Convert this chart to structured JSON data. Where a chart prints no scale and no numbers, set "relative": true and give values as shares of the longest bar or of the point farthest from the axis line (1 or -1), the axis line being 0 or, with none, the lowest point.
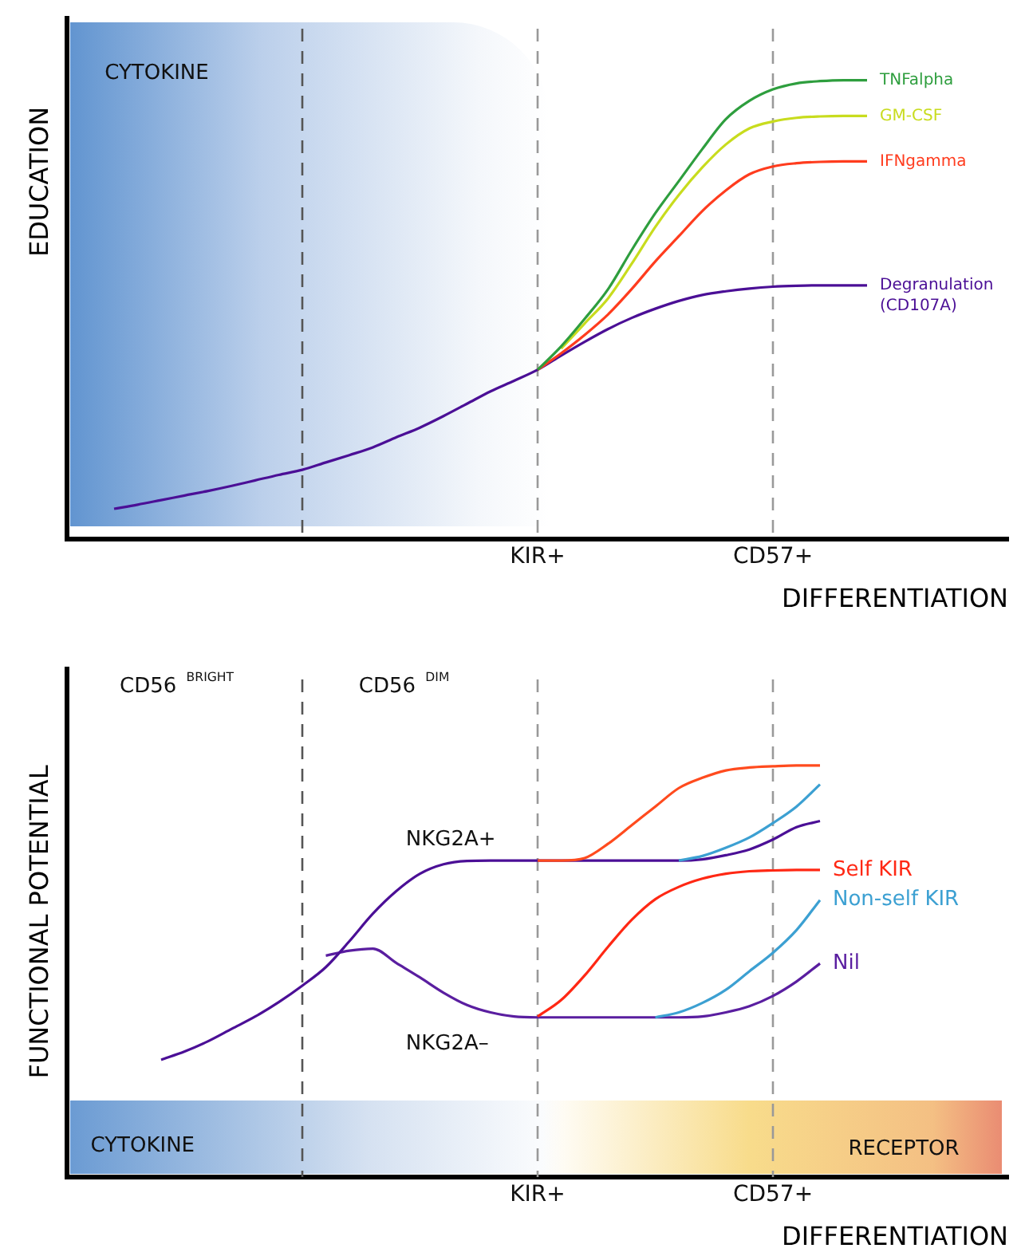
{
  "chart_data": [
    {
      "type": "line",
      "relative": true,
      "ylabel": "EDUCATION",
      "xlabel": "DIFFERENTIATION",
      "categories": [
        null,
        null,
        null,
        null,
        null,
        null,
        null,
        null,
        null,
        null,
        null,
        null,
        null,
        null,
        null,
        null,
        null,
        null,
        null,
        null,
        "KIR+",
        null,
        null,
        null,
        null,
        null,
        null,
        null,
        null,
        null,
        "CD57+",
        null,
        null,
        null,
        null,
        null,
        null,
        null,
        null,
        null,
        null
      ],
      "legend": false,
      "grid": false,
      "marker": "none",
      "line_style": "solid",
      "ref_lines": [
        {
          "axis": "x",
          "value": "KIR+",
          "color": "#999999",
          "line_style": "dashed"
        },
        {
          "axis": "x",
          "value": "CD57+",
          "color": "#999999",
          "line_style": "dashed"
        }
      ],
      "annotations": [
        "CYTOKINE"
      ],
      "series": [
        {
          "name": "TNFalpha",
          "color": "#2e9e3e",
          "values": [
            null,
            null,
            null,
            null,
            null,
            null,
            null,
            null,
            null,
            null,
            null,
            null,
            null,
            null,
            null,
            null,
            null,
            null,
            null,
            null,
            0.369,
            0.42,
            0.48,
            0.545,
            0.63,
            0.71,
            0.78,
            0.85,
            0.915,
            0.955,
            0.98,
            0.993,
            0.998,
            1,
            1,
            null,
            null,
            null,
            null,
            null,
            null
          ]
        },
        {
          "name": "GM-CSF",
          "color": "#c8dc1e",
          "values": [
            null,
            null,
            null,
            null,
            null,
            null,
            null,
            null,
            null,
            null,
            null,
            null,
            null,
            null,
            null,
            null,
            null,
            null,
            null,
            null,
            null,
            0.415,
            0.47,
            0.525,
            0.6,
            0.68,
            0.75,
            0.81,
            0.86,
            0.895,
            0.91,
            0.918,
            0.921,
            0.922,
            0.922,
            null,
            null,
            null,
            null,
            null,
            null
          ]
        },
        {
          "name": "IFNgamma",
          "color": "#ff3c1e",
          "values": [
            null,
            null,
            null,
            null,
            null,
            null,
            null,
            null,
            null,
            null,
            null,
            null,
            null,
            null,
            null,
            null,
            null,
            null,
            null,
            null,
            0.369,
            0.405,
            0.445,
            0.49,
            0.545,
            0.605,
            0.66,
            0.715,
            0.76,
            0.795,
            0.812,
            0.819,
            0.822,
            0.823,
            0.823,
            null,
            null,
            null,
            null,
            null,
            null
          ]
        },
        {
          "name": "Degranulation (CD107A)",
          "color": "#4b0f96",
          "values": [
            null,
            null,
            0.066,
            0.075,
            0.085,
            0.095,
            0.105,
            0.116,
            0.128,
            0.14,
            0.151,
            0.167,
            0.183,
            0.2,
            0.222,
            0.243,
            0.268,
            0.295,
            0.322,
            0.345,
            0.369,
            0.4,
            0.43,
            0.458,
            0.482,
            0.502,
            0.519,
            0.532,
            0.54,
            0.546,
            0.55,
            0.552,
            0.553,
            0.553,
            0.553,
            null,
            null,
            null,
            null,
            null,
            null
          ]
        }
      ]
    },
    {
      "type": "line",
      "relative": true,
      "ylabel": "FUNCTIONAL POTENTIAL",
      "xlabel": "DIFFERENTIATION",
      "categories": [
        null,
        null,
        null,
        null,
        null,
        null,
        null,
        null,
        null,
        null,
        null,
        null,
        null,
        null,
        null,
        null,
        null,
        null,
        null,
        null,
        "KIR+",
        null,
        null,
        null,
        null,
        null,
        null,
        null,
        null,
        null,
        "CD57+",
        null,
        null,
        null,
        null,
        null,
        null,
        null,
        null,
        null,
        null
      ],
      "legend": false,
      "grid": false,
      "marker": "none",
      "line_style": "solid",
      "ref_lines": [
        {
          "axis": "x",
          "value": "KIR+",
          "color": "#999999",
          "line_style": "dashed"
        },
        {
          "axis": "x",
          "value": "CD57+",
          "color": "#999999",
          "line_style": "dashed"
        }
      ],
      "annotations": [
        "CD56 $^{BRIGHT}$",
        "CD56 $^{DIM}$",
        "NKG2A+",
        "NKG2A–",
        "CYTOKINE",
        "RECEPTOR"
      ],
      "series": [
        {
          "color": "#ff4b1e",
          "values": [
            null,
            null,
            null,
            null,
            null,
            null,
            null,
            null,
            null,
            null,
            null,
            null,
            null,
            null,
            null,
            null,
            null,
            null,
            null,
            null,
            0.769,
            0.769,
            0.775,
            0.81,
            0.855,
            0.9,
            0.945,
            0.97,
            0.988,
            0.995,
            0.998,
            1,
            1,
            null,
            null,
            null,
            null,
            null,
            null,
            null,
            null
          ]
        },
        {
          "color": "#3ca0d2",
          "values": [
            null,
            null,
            null,
            null,
            null,
            null,
            null,
            null,
            null,
            null,
            null,
            null,
            null,
            null,
            null,
            null,
            null,
            null,
            null,
            null,
            null,
            null,
            null,
            null,
            null,
            null,
            0.769,
            0.78,
            0.8,
            0.825,
            0.86,
            0.9,
            0.954,
            null,
            null,
            null,
            null,
            null,
            null,
            null,
            null
          ]
        },
        {
          "color": "#4b0f96",
          "values": [
            null,
            null,
            null,
            null,
            0.285,
            0.305,
            0.33,
            0.36,
            0.39,
            0.425,
            0.465,
            0.51,
            0.573,
            0.64,
            0.695,
            0.737,
            0.76,
            0.768,
            0.769,
            0.769,
            0.769,
            0.769,
            0.769,
            0.769,
            0.769,
            0.769,
            0.769,
            0.772,
            0.782,
            0.796,
            0.82,
            0.85,
            0.865,
            null,
            null,
            null,
            null,
            null,
            null,
            null,
            null
          ]
        },
        {
          "name": "Self KIR",
          "color": "#ff2814",
          "values": [
            null,
            null,
            null,
            null,
            null,
            null,
            null,
            null,
            null,
            null,
            null,
            null,
            null,
            null,
            null,
            null,
            null,
            null,
            null,
            null,
            0.39,
            0.43,
            0.49,
            0.56,
            0.625,
            0.675,
            0.705,
            0.725,
            0.737,
            0.743,
            0.745,
            0.746,
            0.746,
            null,
            null,
            null,
            null,
            null,
            null,
            null,
            null
          ]
        },
        {
          "name": "Non-self KIR",
          "color": "#3ca0d2",
          "values": [
            null,
            null,
            null,
            null,
            null,
            null,
            null,
            null,
            null,
            null,
            null,
            null,
            null,
            null,
            null,
            null,
            null,
            null,
            null,
            null,
            null,
            null,
            null,
            null,
            null,
            0.388,
            0.4,
            0.423,
            0.455,
            0.5,
            0.545,
            0.6,
            0.673,
            null,
            null,
            null,
            null,
            null,
            null,
            null,
            null
          ]
        },
        {
          "name": "Nil",
          "color": "#5a1ea0",
          "values": [
            null,
            null,
            null,
            null,
            null,
            null,
            null,
            null,
            null,
            null,
            null,
            0.538,
            0.55,
            0.555,
            0.52,
            0.485,
            0.448,
            0.418,
            0.4,
            0.39,
            0.388,
            0.388,
            0.388,
            0.388,
            0.388,
            0.388,
            0.388,
            0.39,
            0.4,
            0.415,
            0.44,
            0.475,
            0.519,
            null,
            null,
            null,
            null,
            null,
            null,
            null,
            null
          ]
        }
      ]
    }
  ]
}
